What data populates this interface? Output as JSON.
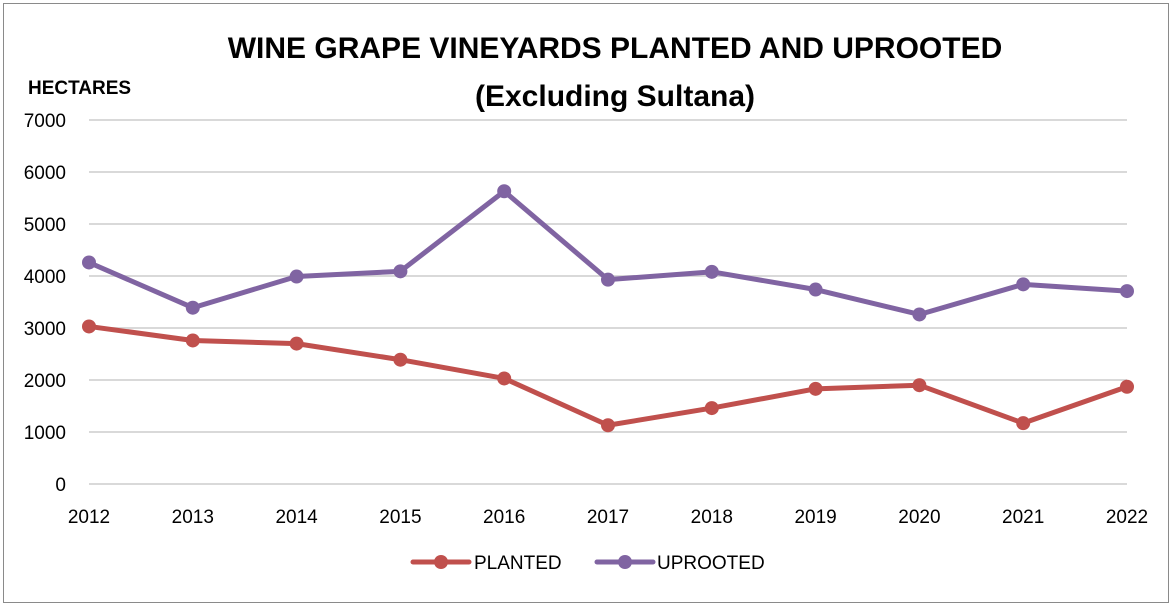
{
  "chart_data": {
    "type": "line",
    "title": "WINE GRAPE VINEYARDS PLANTED AND UPROOTED",
    "subtitle": "(Excluding Sultana)",
    "ylabel": "HECTARES",
    "xlabel": "",
    "x": [
      "2012",
      "2013",
      "2014",
      "2015",
      "2016",
      "2017",
      "2018",
      "2019",
      "2020",
      "2021",
      "2022"
    ],
    "ylim": [
      0,
      7000
    ],
    "yticks": [
      "0",
      "1000",
      "2000",
      "3000",
      "4000",
      "5000",
      "6000",
      "7000"
    ],
    "grid": true,
    "legend_position": "bottom",
    "series": [
      {
        "name": "PLANTED",
        "color": "#c0504d",
        "values": [
          3030,
          2760,
          2700,
          2390,
          2030,
          1130,
          1460,
          1830,
          1900,
          1170,
          1870
        ]
      },
      {
        "name": "UPROOTED",
        "color": "#8064a2",
        "values": [
          4260,
          3390,
          3990,
          4090,
          5630,
          3930,
          4080,
          3740,
          3260,
          3840,
          3710
        ]
      }
    ]
  }
}
